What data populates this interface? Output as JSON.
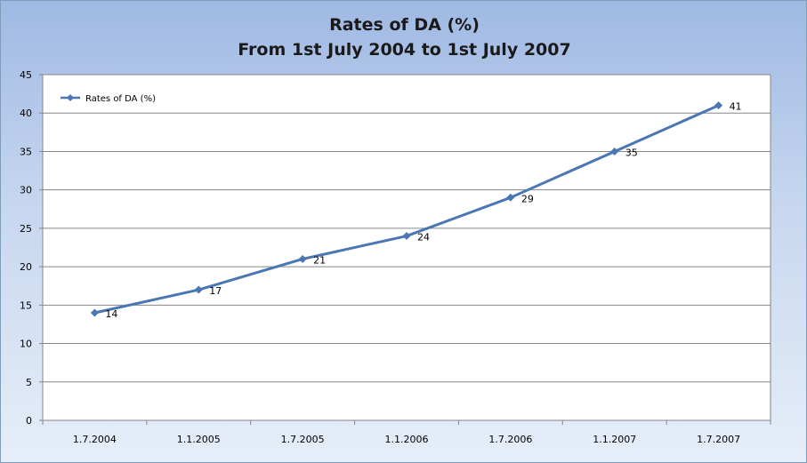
{
  "chart_data": {
    "type": "line",
    "title": "Rates of DA (%)",
    "subtitle": "From 1st July 2004 to 1st July 2007",
    "categories": [
      "1.7.2004",
      "1.1.2005",
      "1.7.2005",
      "1.1.2006",
      "1.7.2006",
      "1.1.2007",
      "1.7.2007"
    ],
    "series": [
      {
        "name": "Rates of DA (%)",
        "values": [
          14,
          17,
          21,
          24,
          29,
          35,
          41
        ],
        "color": "#4a76b4"
      }
    ],
    "ylim": [
      0,
      45
    ],
    "yticks": [
      0,
      5,
      10,
      15,
      20,
      25,
      30,
      35,
      40,
      45
    ],
    "grid": true,
    "legend": "top-left",
    "data_labels": true
  }
}
